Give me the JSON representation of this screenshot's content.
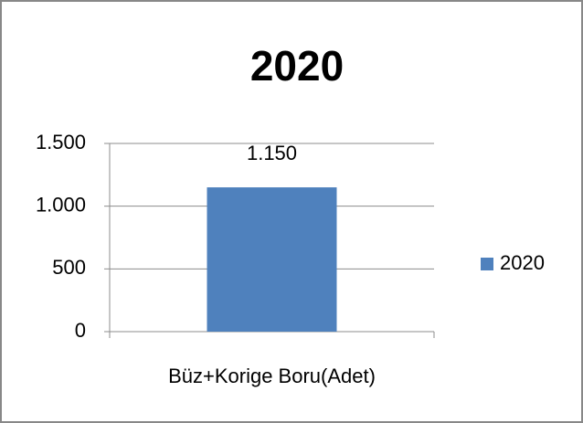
{
  "chart_data": {
    "type": "bar",
    "title": "2020",
    "categories": [
      "Büz+Korige Boru(Adet)"
    ],
    "series": [
      {
        "name": "2020",
        "color": "#4f81bd",
        "values": [
          1150
        ],
        "value_labels": [
          "1.150"
        ]
      }
    ],
    "ylim": [
      0,
      1500
    ],
    "yticks": [
      0,
      500,
      {
        "value": 1000,
        "label": "1.000"
      },
      {
        "value": 1500,
        "label": "1.500"
      }
    ],
    "grid": true,
    "legend": "right"
  }
}
